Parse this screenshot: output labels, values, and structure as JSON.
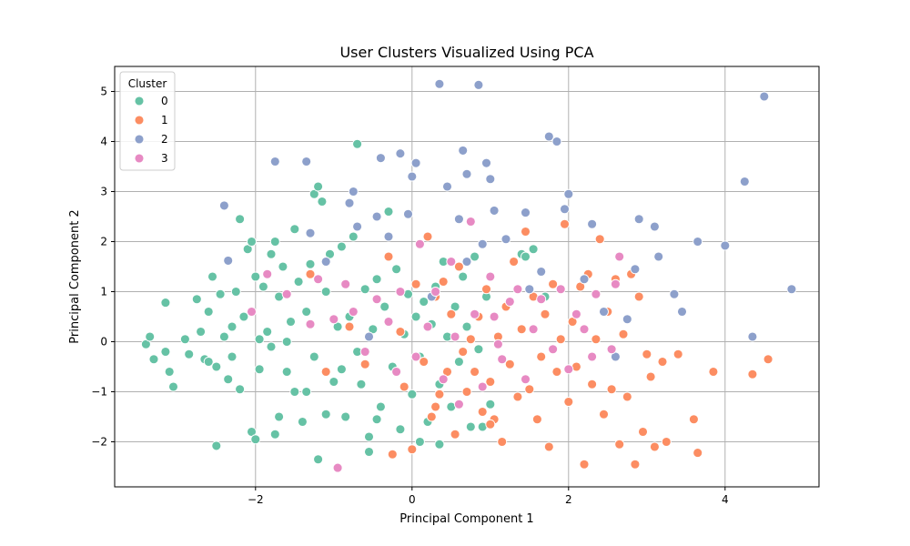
{
  "chart_data": {
    "type": "scatter",
    "title": "User Clusters Visualized Using PCA",
    "xlabel": "Principal Component 1",
    "ylabel": "Principal Component 2",
    "xlim": [
      -3.8,
      5.2
    ],
    "ylim": [
      -2.9,
      5.5
    ],
    "xticks": [
      -2,
      0,
      2,
      4
    ],
    "yticks": [
      -2,
      -1,
      0,
      1,
      2,
      3,
      4,
      5
    ],
    "xtick_labels": [
      "−2",
      "0",
      "2",
      "4"
    ],
    "ytick_labels": [
      "−2",
      "−1",
      "0",
      "1",
      "2",
      "3",
      "4",
      "5"
    ],
    "grid": true,
    "legend": {
      "title": "Cluster",
      "position": "top-left"
    },
    "series": [
      {
        "name": "0",
        "color": "#66c2a5",
        "points": [
          [
            -3.4,
            -0.05
          ],
          [
            -3.35,
            0.1
          ],
          [
            -3.3,
            -0.35
          ],
          [
            -3.15,
            -0.2
          ],
          [
            -3.15,
            0.78
          ],
          [
            -3.1,
            -0.6
          ],
          [
            -3.05,
            -0.9
          ],
          [
            -2.9,
            0.05
          ],
          [
            -2.85,
            -0.25
          ],
          [
            -2.75,
            0.85
          ],
          [
            -2.7,
            0.2
          ],
          [
            -2.65,
            -0.35
          ],
          [
            -2.6,
            0.6
          ],
          [
            -2.55,
            1.3
          ],
          [
            -2.5,
            -0.5
          ],
          [
            -2.5,
            -2.08
          ],
          [
            -2.45,
            0.95
          ],
          [
            -2.4,
            0.1
          ],
          [
            -2.35,
            -0.75
          ],
          [
            -2.3,
            0.3
          ],
          [
            -2.25,
            1.0
          ],
          [
            -2.2,
            2.45
          ],
          [
            -2.2,
            -0.95
          ],
          [
            -2.15,
            0.5
          ],
          [
            -2.1,
            1.85
          ],
          [
            -2.05,
            2.0
          ],
          [
            -2.05,
            -1.8
          ],
          [
            -2.0,
            -1.95
          ],
          [
            -2.0,
            1.3
          ],
          [
            -1.95,
            -0.55
          ],
          [
            -1.9,
            1.1
          ],
          [
            -1.85,
            0.2
          ],
          [
            -1.8,
            1.75
          ],
          [
            -1.8,
            -0.1
          ],
          [
            -1.75,
            2.0
          ],
          [
            -1.7,
            0.9
          ],
          [
            -1.7,
            -1.5
          ],
          [
            -1.65,
            1.5
          ],
          [
            -1.6,
            -0.6
          ],
          [
            -1.55,
            0.4
          ],
          [
            -1.5,
            2.25
          ],
          [
            -1.5,
            -1.0
          ],
          [
            -1.45,
            1.2
          ],
          [
            -1.4,
            -1.6
          ],
          [
            -1.35,
            0.6
          ],
          [
            -1.3,
            1.55
          ],
          [
            -1.25,
            -0.3
          ],
          [
            -1.25,
            2.95
          ],
          [
            -1.2,
            3.1
          ],
          [
            -1.2,
            -2.35
          ],
          [
            -1.15,
            2.8
          ],
          [
            -1.1,
            1.0
          ],
          [
            -1.05,
            1.75
          ],
          [
            -1.0,
            -0.8
          ],
          [
            -0.95,
            0.3
          ],
          [
            -0.9,
            1.9
          ],
          [
            -0.85,
            -1.5
          ],
          [
            -0.8,
            0.5
          ],
          [
            -0.75,
            2.1
          ],
          [
            -0.7,
            -0.2
          ],
          [
            -0.7,
            3.95
          ],
          [
            -0.65,
            -0.85
          ],
          [
            -0.6,
            1.05
          ],
          [
            -0.55,
            -1.9
          ],
          [
            -0.5,
            0.25
          ],
          [
            -0.45,
            1.25
          ],
          [
            -0.4,
            -1.3
          ],
          [
            -0.35,
            0.7
          ],
          [
            -0.3,
            2.6
          ],
          [
            -0.25,
            -0.5
          ],
          [
            -0.2,
            1.45
          ],
          [
            -0.15,
            -1.75
          ],
          [
            -0.1,
            0.15
          ],
          [
            -0.05,
            0.95
          ],
          [
            0.0,
            -1.05
          ],
          [
            0.05,
            0.5
          ],
          [
            0.1,
            -0.3
          ],
          [
            0.15,
            0.8
          ],
          [
            0.2,
            -1.6
          ],
          [
            0.25,
            0.35
          ],
          [
            0.3,
            1.1
          ],
          [
            0.35,
            -0.85
          ],
          [
            0.4,
            1.6
          ],
          [
            0.45,
            0.1
          ],
          [
            0.5,
            -1.3
          ],
          [
            0.55,
            0.7
          ],
          [
            0.6,
            -0.4
          ],
          [
            0.65,
            1.3
          ],
          [
            0.7,
            0.3
          ],
          [
            0.75,
            -1.7
          ],
          [
            0.8,
            1.7
          ],
          [
            0.85,
            -0.15
          ],
          [
            0.9,
            -1.7
          ],
          [
            0.95,
            0.9
          ],
          [
            1.0,
            -1.25
          ],
          [
            1.4,
            1.75
          ],
          [
            1.45,
            1.7
          ],
          [
            1.55,
            1.85
          ],
          [
            1.7,
            0.9
          ],
          [
            -1.95,
            0.05
          ],
          [
            -2.3,
            -0.3
          ],
          [
            -1.6,
            0.0
          ],
          [
            -1.1,
            -1.45
          ],
          [
            -0.45,
            -1.55
          ],
          [
            0.1,
            -2.0
          ],
          [
            -1.35,
            -1.0
          ],
          [
            -0.9,
            -0.55
          ],
          [
            -2.6,
            -0.4
          ],
          [
            -1.75,
            -1.85
          ],
          [
            -0.55,
            -2.2
          ],
          [
            0.35,
            -2.05
          ]
        ]
      },
      {
        "name": "1",
        "color": "#fc8d62",
        "points": [
          [
            -1.3,
            1.35
          ],
          [
            -1.1,
            -0.6
          ],
          [
            -0.8,
            0.3
          ],
          [
            -0.6,
            -0.45
          ],
          [
            -0.3,
            1.7
          ],
          [
            -0.25,
            -2.25
          ],
          [
            -0.15,
            0.2
          ],
          [
            -0.1,
            -0.9
          ],
          [
            0.0,
            -2.15
          ],
          [
            0.05,
            1.15
          ],
          [
            0.15,
            -0.4
          ],
          [
            0.2,
            2.1
          ],
          [
            0.25,
            -1.5
          ],
          [
            0.3,
            0.9
          ],
          [
            0.35,
            -1.05
          ],
          [
            0.4,
            1.2
          ],
          [
            0.45,
            -0.6
          ],
          [
            0.5,
            0.55
          ],
          [
            0.55,
            -1.85
          ],
          [
            0.6,
            1.5
          ],
          [
            0.65,
            -0.2
          ],
          [
            0.7,
            -1.0
          ],
          [
            0.75,
            0.05
          ],
          [
            0.8,
            -0.6
          ],
          [
            0.85,
            0.5
          ],
          [
            0.9,
            -1.4
          ],
          [
            0.95,
            1.05
          ],
          [
            1.0,
            -0.8
          ],
          [
            1.05,
            -1.55
          ],
          [
            1.1,
            0.1
          ],
          [
            1.15,
            -2.0
          ],
          [
            1.2,
            0.7
          ],
          [
            1.25,
            -0.45
          ],
          [
            1.3,
            1.6
          ],
          [
            1.35,
            -1.1
          ],
          [
            1.4,
            0.25
          ],
          [
            1.45,
            2.2
          ],
          [
            1.5,
            -0.95
          ],
          [
            1.55,
            0.9
          ],
          [
            1.6,
            -1.55
          ],
          [
            1.65,
            -0.3
          ],
          [
            1.7,
            0.55
          ],
          [
            1.75,
            -2.1
          ],
          [
            1.8,
            1.15
          ],
          [
            1.85,
            -0.6
          ],
          [
            1.9,
            0.05
          ],
          [
            1.95,
            2.35
          ],
          [
            2.0,
            -1.2
          ],
          [
            2.05,
            0.4
          ],
          [
            2.1,
            -0.5
          ],
          [
            2.15,
            1.1
          ],
          [
            2.2,
            -2.45
          ],
          [
            2.25,
            1.35
          ],
          [
            2.3,
            -0.85
          ],
          [
            2.35,
            0.05
          ],
          [
            2.4,
            2.05
          ],
          [
            2.45,
            -1.45
          ],
          [
            2.5,
            0.6
          ],
          [
            2.55,
            -0.95
          ],
          [
            2.6,
            1.25
          ],
          [
            2.65,
            -2.05
          ],
          [
            2.7,
            0.15
          ],
          [
            2.75,
            -1.1
          ],
          [
            2.8,
            1.35
          ],
          [
            2.85,
            -2.45
          ],
          [
            2.9,
            0.9
          ],
          [
            2.95,
            -1.8
          ],
          [
            3.0,
            -0.25
          ],
          [
            3.05,
            -0.7
          ],
          [
            3.1,
            -2.1
          ],
          [
            3.2,
            -0.4
          ],
          [
            3.25,
            -2.0
          ],
          [
            3.4,
            -0.25
          ],
          [
            3.6,
            -1.55
          ],
          [
            3.65,
            -2.22
          ],
          [
            3.85,
            -0.6
          ],
          [
            4.35,
            -0.65
          ],
          [
            4.55,
            -0.35
          ],
          [
            1.0,
            -1.65
          ],
          [
            0.3,
            -1.3
          ]
        ]
      },
      {
        "name": "2",
        "color": "#8da0cb",
        "points": [
          [
            -2.4,
            2.72
          ],
          [
            -2.35,
            1.62
          ],
          [
            -1.75,
            3.6
          ],
          [
            -1.35,
            3.6
          ],
          [
            -1.3,
            2.17
          ],
          [
            -1.1,
            1.6
          ],
          [
            -0.8,
            2.77
          ],
          [
            -0.75,
            3.0
          ],
          [
            -0.7,
            2.3
          ],
          [
            -0.45,
            2.5
          ],
          [
            -0.4,
            3.67
          ],
          [
            -0.3,
            2.1
          ],
          [
            -0.15,
            3.76
          ],
          [
            -0.05,
            2.55
          ],
          [
            0.0,
            3.3
          ],
          [
            0.05,
            3.57
          ],
          [
            0.35,
            5.15
          ],
          [
            0.45,
            3.1
          ],
          [
            0.6,
            2.45
          ],
          [
            0.65,
            3.82
          ],
          [
            0.7,
            3.35
          ],
          [
            0.85,
            5.13
          ],
          [
            0.9,
            1.95
          ],
          [
            0.95,
            3.57
          ],
          [
            1.0,
            3.25
          ],
          [
            1.05,
            2.62
          ],
          [
            1.2,
            2.05
          ],
          [
            1.45,
            2.58
          ],
          [
            1.65,
            1.4
          ],
          [
            1.75,
            4.1
          ],
          [
            1.85,
            4.0
          ],
          [
            1.95,
            2.65
          ],
          [
            2.0,
            2.95
          ],
          [
            2.2,
            1.25
          ],
          [
            2.3,
            2.35
          ],
          [
            2.45,
            0.6
          ],
          [
            2.6,
            -0.3
          ],
          [
            2.75,
            0.45
          ],
          [
            2.85,
            1.45
          ],
          [
            2.9,
            2.45
          ],
          [
            3.1,
            2.3
          ],
          [
            3.15,
            1.7
          ],
          [
            3.35,
            0.95
          ],
          [
            3.45,
            0.6
          ],
          [
            3.65,
            2.0
          ],
          [
            4.0,
            1.92
          ],
          [
            4.25,
            3.2
          ],
          [
            4.35,
            0.1
          ],
          [
            4.5,
            4.9
          ],
          [
            4.85,
            1.05
          ],
          [
            1.5,
            1.05
          ],
          [
            0.7,
            1.6
          ],
          [
            0.25,
            0.9
          ],
          [
            -0.55,
            0.1
          ]
        ]
      },
      {
        "name": "3",
        "color": "#e78ac3",
        "points": [
          [
            -2.05,
            0.6
          ],
          [
            -1.85,
            1.35
          ],
          [
            -1.6,
            0.95
          ],
          [
            -1.3,
            0.35
          ],
          [
            -1.2,
            1.25
          ],
          [
            -1.0,
            0.45
          ],
          [
            -0.95,
            -2.52
          ],
          [
            -0.85,
            1.15
          ],
          [
            -0.75,
            0.6
          ],
          [
            -0.6,
            -0.2
          ],
          [
            -0.45,
            0.85
          ],
          [
            -0.3,
            0.4
          ],
          [
            -0.15,
            1.0
          ],
          [
            0.05,
            -0.3
          ],
          [
            0.1,
            1.95
          ],
          [
            0.2,
            0.3
          ],
          [
            0.3,
            1.0
          ],
          [
            0.4,
            -0.75
          ],
          [
            0.5,
            1.6
          ],
          [
            0.55,
            0.1
          ],
          [
            0.6,
            -1.25
          ],
          [
            0.75,
            2.4
          ],
          [
            0.8,
            0.55
          ],
          [
            0.9,
            -0.9
          ],
          [
            1.0,
            1.3
          ],
          [
            1.05,
            0.5
          ],
          [
            1.15,
            -0.35
          ],
          [
            1.25,
            0.8
          ],
          [
            1.35,
            1.05
          ],
          [
            1.45,
            -0.75
          ],
          [
            1.55,
            0.25
          ],
          [
            1.65,
            0.85
          ],
          [
            1.8,
            -0.15
          ],
          [
            1.9,
            1.05
          ],
          [
            2.0,
            -0.55
          ],
          [
            2.1,
            0.55
          ],
          [
            2.2,
            0.25
          ],
          [
            2.35,
            0.95
          ],
          [
            2.55,
            -0.15
          ],
          [
            2.6,
            1.15
          ],
          [
            2.65,
            1.7
          ],
          [
            2.3,
            -0.3
          ],
          [
            1.1,
            -0.05
          ],
          [
            -0.2,
            -0.6
          ]
        ]
      }
    ]
  }
}
